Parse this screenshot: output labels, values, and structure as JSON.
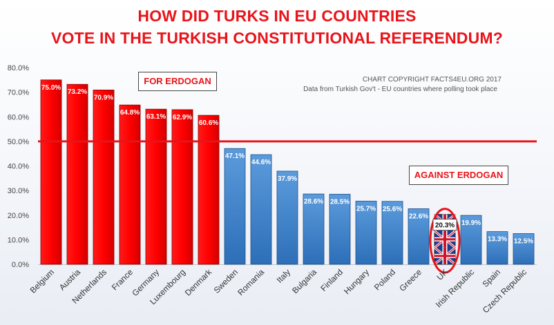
{
  "chart_data": {
    "type": "bar",
    "title": "HOW DID TURKS IN EU COUNTRIES",
    "subtitle": "VOTE IN THE TURKISH CONSTITUTIONAL REFERENDUM?",
    "xlabel": "",
    "ylabel": "",
    "ylim": [
      0,
      80
    ],
    "yticks": [
      "0.0%",
      "10.0%",
      "20.0%",
      "30.0%",
      "40.0%",
      "50.0%",
      "60.0%",
      "70.0%",
      "80.0%"
    ],
    "reference_line": 50,
    "categories": [
      "Belgium",
      "Austria",
      "Netherlands",
      "France",
      "Germany",
      "Luxembourg",
      "Denmark",
      "Sweden",
      "Romania",
      "Italy",
      "Bulgaria",
      "Finland",
      "Hungary",
      "Poland",
      "Greece",
      "UK",
      "Irish Republic",
      "Spain",
      "Czech Republic"
    ],
    "values": [
      75.0,
      73.2,
      70.9,
      64.8,
      63.1,
      62.9,
      60.6,
      47.1,
      44.6,
      37.9,
      28.6,
      28.5,
      25.7,
      25.6,
      22.6,
      20.3,
      19.9,
      13.3,
      12.5
    ],
    "labels": [
      "75.0%",
      "73.2%",
      "70.9%",
      "64.8%",
      "63.1%",
      "62.9%",
      "60.6%",
      "47.1%",
      "44.6%",
      "37.9%",
      "28.6%",
      "28.5%",
      "25.7%",
      "25.6%",
      "22.6%",
      "20.3%",
      "19.9%",
      "13.3%",
      "12.5%"
    ],
    "highlight_category": "UK",
    "grid": false,
    "colors": {
      "for": "#ff0000",
      "against": "#3f86d0",
      "reference_line": "#e8141a",
      "title": "#e8141a",
      "highlight_ring": "#e8141a"
    }
  },
  "copyright": {
    "line1": "CHART COPYRIGHT FACTS4EU.ORG 2017",
    "line2": "Data from Turkish Gov't - EU countries where polling took place"
  },
  "tags": {
    "for": "FOR ERDOGAN",
    "against": "AGAINST ERDOGAN"
  }
}
